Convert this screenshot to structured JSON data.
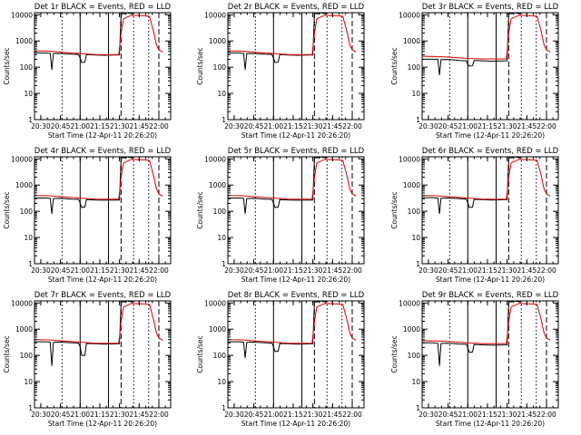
{
  "chart_data": {
    "type": "line",
    "layout": "3x3 grid of panels",
    "colors": {
      "events": "#000000",
      "lld": "#e01010",
      "axes": "#000000",
      "background": "#ffffff"
    },
    "shared": {
      "xlabel": "Start Time (12-Apr-11 20:26:20)",
      "ylabel": "Counts/sec",
      "yscale": "log",
      "ylim": [
        1,
        12000
      ],
      "yticks": [
        1,
        10,
        100,
        1000,
        10000
      ],
      "ytick_labels": [
        "1",
        "10",
        "100",
        "1000",
        "10000"
      ],
      "xlim": [
        20.42,
        22.15
      ],
      "xticks": [
        20.5,
        20.75,
        21.0,
        21.25,
        21.5,
        21.75,
        22.0
      ],
      "xtick_labels": [
        "20:30",
        "20:45",
        "21:00",
        "21:15",
        "21:30",
        "21:45",
        "22:00"
      ],
      "series_names": [
        "Events",
        "LLD"
      ],
      "vlines": [
        {
          "x": 20.77,
          "style": "dotted"
        },
        {
          "x": 21.0,
          "style": "solid"
        },
        {
          "x": 21.36,
          "style": "solid"
        },
        {
          "x": 21.52,
          "style": "dashed"
        },
        {
          "x": 21.68,
          "style": "dotted"
        },
        {
          "x": 21.87,
          "style": "dotted"
        },
        {
          "x": 22.0,
          "style": "dashed"
        }
      ]
    },
    "panels": [
      {
        "title": "Det 1r BLACK = Events, RED = LLD",
        "series": [
          {
            "name": "Events",
            "x": [
              20.42,
              20.55,
              20.62,
              20.64,
              20.66,
              20.75,
              20.9,
              20.98,
              21.0,
              21.02,
              21.06,
              21.08,
              21.2,
              21.3,
              21.5,
              21.52,
              21.56,
              21.6,
              21.62,
              21.66
            ],
            "y": [
              350,
              350,
              340,
              80,
              330,
              335,
              310,
              305,
              220,
              150,
              155,
              300,
              290,
              285,
              295,
              11000,
              11000,
              12000,
              11500,
              11000
            ]
          },
          {
            "name": "LLD",
            "x": [
              20.42,
              20.6,
              20.75,
              21.0,
              21.2,
              21.49,
              21.52,
              21.55,
              21.65,
              21.8,
              21.88,
              21.93,
              21.97,
              22.0,
              22.05
            ],
            "y": [
              420,
              410,
              380,
              330,
              300,
              300,
              2000,
              7000,
              9500,
              9200,
              8800,
              2500,
              700,
              460,
              380
            ]
          }
        ]
      },
      {
        "title": "Det 2r BLACK = Events, RED = LLD",
        "series": [
          {
            "name": "Events",
            "x": [
              20.42,
              20.55,
              20.62,
              20.64,
              20.66,
              20.75,
              20.9,
              20.98,
              21.0,
              21.02,
              21.06,
              21.08,
              21.2,
              21.3,
              21.5,
              21.52,
              21.56,
              21.6,
              21.62,
              21.66
            ],
            "y": [
              350,
              350,
              340,
              80,
              330,
              335,
              310,
              305,
              220,
              150,
              155,
              300,
              290,
              285,
              295,
              11000,
              11000,
              12000,
              11500,
              11000
            ]
          },
          {
            "name": "LLD",
            "x": [
              20.42,
              20.6,
              20.75,
              21.0,
              21.2,
              21.49,
              21.52,
              21.55,
              21.65,
              21.8,
              21.88,
              21.93,
              21.97,
              22.0,
              22.05
            ],
            "y": [
              420,
              410,
              380,
              330,
              300,
              300,
              2000,
              7000,
              9500,
              9200,
              8800,
              2500,
              700,
              460,
              380
            ]
          }
        ]
      },
      {
        "title": "Det 3r BLACK = Events, RED = LLD",
        "series": [
          {
            "name": "Events",
            "x": [
              20.42,
              20.55,
              20.62,
              20.64,
              20.66,
              20.75,
              20.9,
              20.98,
              21.0,
              21.02,
              21.06,
              21.08,
              21.2,
              21.3,
              21.5,
              21.52,
              21.56,
              21.6,
              21.62,
              21.66
            ],
            "y": [
              200,
              200,
              200,
              50,
              195,
              198,
              180,
              175,
              130,
              110,
              112,
              180,
              175,
              170,
              175,
              11000,
              11000,
              12000,
              11500,
              11000
            ]
          },
          {
            "name": "LLD",
            "x": [
              20.42,
              20.6,
              20.75,
              21.0,
              21.2,
              21.49,
              21.52,
              21.55,
              21.65,
              21.8,
              21.88,
              21.93,
              21.97,
              22.0,
              22.05
            ],
            "y": [
              260,
              255,
              245,
              215,
              205,
              205,
              2000,
              7000,
              9500,
              9200,
              8800,
              2500,
              700,
              460,
              380
            ]
          }
        ]
      },
      {
        "title": "Det 4r BLACK = Events, RED = LLD",
        "series": [
          {
            "name": "Events",
            "x": [
              20.42,
              20.55,
              20.62,
              20.64,
              20.66,
              20.75,
              20.9,
              20.98,
              21.0,
              21.02,
              21.06,
              21.08,
              21.2,
              21.3,
              21.5,
              21.52,
              21.56,
              21.6,
              21.62,
              21.66
            ],
            "y": [
              320,
              320,
              310,
              80,
              305,
              310,
              290,
              285,
              200,
              140,
              145,
              280,
              270,
              265,
              270,
              11000,
              11000,
              12000,
              11500,
              11000
            ]
          },
          {
            "name": "LLD",
            "x": [
              20.42,
              20.6,
              20.75,
              21.0,
              21.2,
              21.49,
              21.52,
              21.55,
              21.65,
              21.8,
              21.88,
              21.93,
              21.97,
              22.0,
              22.05
            ],
            "y": [
              400,
              390,
              360,
              320,
              290,
              290,
              2000,
              7000,
              9500,
              9200,
              8800,
              2500,
              700,
              460,
              380
            ]
          }
        ]
      },
      {
        "title": "Det 5r BLACK = Events, RED = LLD",
        "series": [
          {
            "name": "Events",
            "x": [
              20.42,
              20.55,
              20.62,
              20.64,
              20.66,
              20.75,
              20.9,
              20.98,
              21.0,
              21.02,
              21.06,
              21.08,
              21.2,
              21.3,
              21.5,
              21.52,
              21.56,
              21.6,
              21.62,
              21.66
            ],
            "y": [
              320,
              320,
              310,
              80,
              305,
              310,
              290,
              285,
              200,
              140,
              145,
              280,
              270,
              265,
              270,
              11000,
              11000,
              12000,
              11500,
              11000
            ]
          },
          {
            "name": "LLD",
            "x": [
              20.42,
              20.6,
              20.75,
              21.0,
              21.2,
              21.49,
              21.52,
              21.55,
              21.65,
              21.8,
              21.88,
              21.93,
              21.97,
              22.0,
              22.05
            ],
            "y": [
              400,
              390,
              360,
              320,
              290,
              290,
              2000,
              7000,
              9500,
              9200,
              8800,
              2500,
              700,
              460,
              380
            ]
          }
        ]
      },
      {
        "title": "Det 6r BLACK = Events, RED = LLD",
        "series": [
          {
            "name": "Events",
            "x": [
              20.42,
              20.55,
              20.62,
              20.64,
              20.66,
              20.75,
              20.9,
              20.98,
              21.0,
              21.02,
              21.06,
              21.08,
              21.2,
              21.3,
              21.5,
              21.52,
              21.56,
              21.6,
              21.62,
              21.66
            ],
            "y": [
              330,
              330,
              320,
              80,
              315,
              320,
              300,
              295,
              210,
              140,
              145,
              285,
              275,
              270,
              275,
              11000,
              11000,
              12000,
              11500,
              11000
            ]
          },
          {
            "name": "LLD",
            "x": [
              20.42,
              20.6,
              20.75,
              21.0,
              21.2,
              21.49,
              21.52,
              21.55,
              21.65,
              21.8,
              21.88,
              21.93,
              21.97,
              22.0,
              22.05
            ],
            "y": [
              400,
              390,
              360,
              320,
              290,
              290,
              2000,
              7000,
              9500,
              9200,
              8800,
              2500,
              700,
              460,
              380
            ]
          }
        ]
      },
      {
        "title": "Det 7r BLACK = Events, RED = LLD",
        "series": [
          {
            "name": "Events",
            "x": [
              20.42,
              20.55,
              20.62,
              20.64,
              20.66,
              20.75,
              20.9,
              20.98,
              21.0,
              21.02,
              21.06,
              21.08,
              21.2,
              21.3,
              21.5,
              21.52,
              21.56,
              21.6,
              21.62,
              21.66
            ],
            "y": [
              330,
              330,
              320,
              40,
              315,
              320,
              300,
              295,
              210,
              100,
              100,
              285,
              275,
              270,
              275,
              11000,
              11000,
              12000,
              11500,
              11000
            ]
          },
          {
            "name": "LLD",
            "x": [
              20.42,
              20.6,
              20.75,
              21.0,
              21.2,
              21.49,
              21.52,
              21.55,
              21.65,
              21.8,
              21.88,
              21.93,
              21.97,
              22.0,
              22.05
            ],
            "y": [
              400,
              390,
              360,
              320,
              290,
              290,
              2000,
              7000,
              9500,
              9200,
              8800,
              2500,
              700,
              460,
              380
            ]
          }
        ]
      },
      {
        "title": "Det 8r BLACK = Events, RED = LLD",
        "series": [
          {
            "name": "Events",
            "x": [
              20.42,
              20.55,
              20.62,
              20.64,
              20.66,
              20.75,
              20.9,
              20.98,
              21.0,
              21.02,
              21.06,
              21.08,
              21.2,
              21.3,
              21.5,
              21.52,
              21.56,
              21.6,
              21.62,
              21.66
            ],
            "y": [
              330,
              330,
              320,
              80,
              315,
              320,
              300,
              295,
              210,
              140,
              145,
              285,
              275,
              270,
              275,
              11000,
              11000,
              12000,
              11500,
              11000
            ]
          },
          {
            "name": "LLD",
            "x": [
              20.42,
              20.6,
              20.75,
              21.0,
              21.2,
              21.49,
              21.52,
              21.55,
              21.65,
              21.8,
              21.88,
              21.93,
              21.97,
              22.0,
              22.05
            ],
            "y": [
              400,
              390,
              360,
              320,
              290,
              290,
              2000,
              7000,
              9500,
              9200,
              8800,
              2500,
              700,
              460,
              380
            ]
          }
        ]
      },
      {
        "title": "Det 9r BLACK = Events, RED = LLD",
        "series": [
          {
            "name": "Events",
            "x": [
              20.42,
              20.55,
              20.62,
              20.64,
              20.66,
              20.75,
              20.9,
              20.98,
              21.0,
              21.02,
              21.06,
              21.08,
              21.2,
              21.3,
              21.5,
              21.52,
              21.56,
              21.6,
              21.62,
              21.66
            ],
            "y": [
              300,
              300,
              290,
              40,
              285,
              290,
              270,
              265,
              200,
              130,
              135,
              260,
              250,
              245,
              250,
              11000,
              11000,
              12000,
              11500,
              11000
            ]
          },
          {
            "name": "LLD",
            "x": [
              20.42,
              20.6,
              20.75,
              21.0,
              21.2,
              21.49,
              21.52,
              21.55,
              21.65,
              21.8,
              21.88,
              21.93,
              21.97,
              22.0,
              22.05
            ],
            "y": [
              360,
              355,
              340,
              300,
              280,
              280,
              2000,
              7000,
              9500,
              9200,
              8800,
              2500,
              700,
              460,
              380
            ]
          }
        ]
      }
    ]
  }
}
